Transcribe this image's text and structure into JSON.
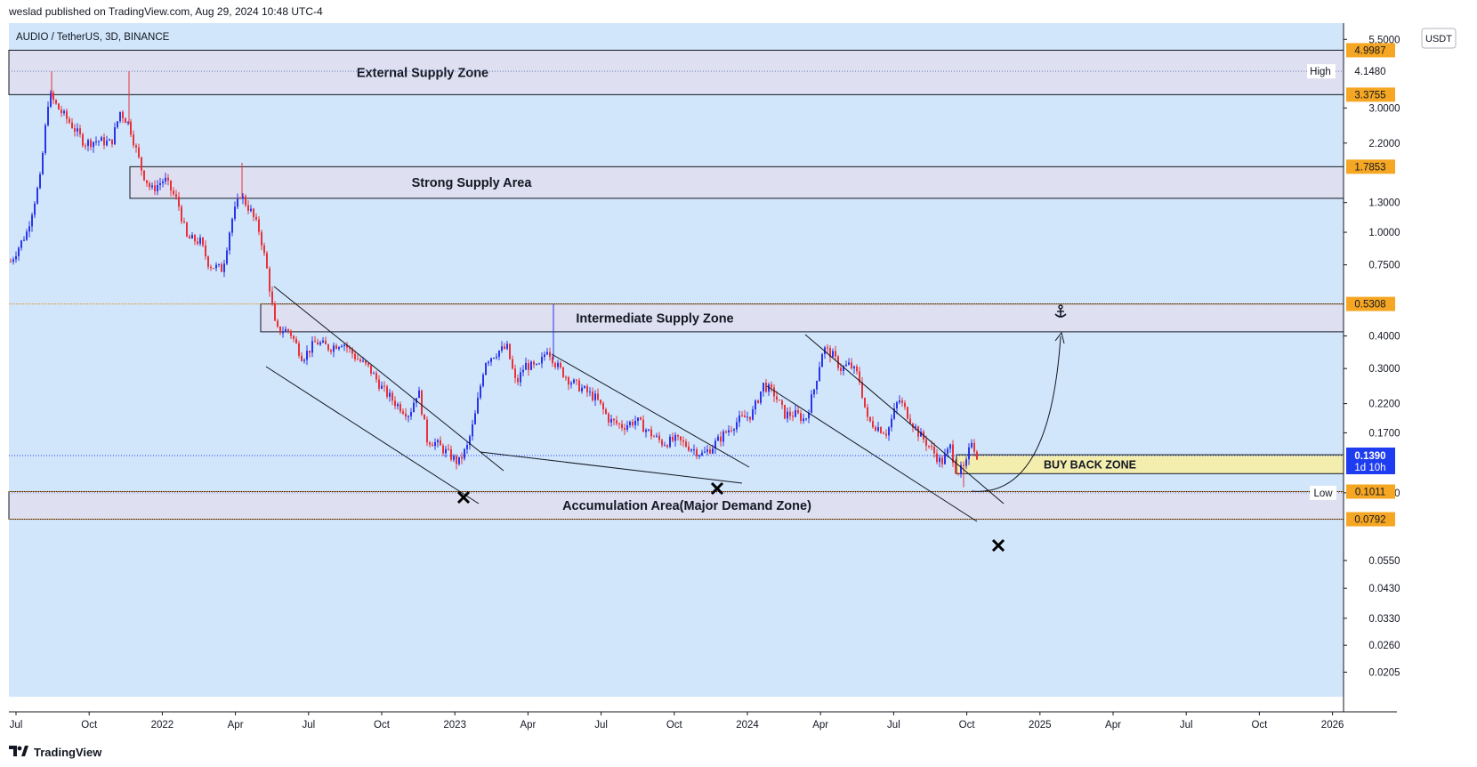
{
  "header": {
    "published_text": "weslad published on TradingView.com, Aug 29, 2024 10:48 UTC-4"
  },
  "footer": {
    "brand": "TradingView",
    "logo_icon": "tradingview-logo-icon"
  },
  "colors": {
    "background": "#d1e6fb",
    "bull": "#2a36e8",
    "bear": "#e8323a",
    "zone_fill": "#dedff0",
    "buy_zone_fill": "#f3eeae",
    "price_tag": "#f5a623",
    "current_tag": "#1e3cf0"
  },
  "chart_data": {
    "type": "candlestick",
    "symbol_label": "AUDIO / TetherUS, 3D, BINANCE",
    "currency": "USDT",
    "y_scale": "log",
    "ylim": [
      0.0165,
      6.35
    ],
    "x_tick_labels": [
      "Jul",
      "Oct",
      "2022",
      "Apr",
      "Jul",
      "Oct",
      "2023",
      "Apr",
      "Jul",
      "Oct",
      "2024",
      "Apr",
      "Jul",
      "Oct",
      "2025",
      "Apr",
      "Jul",
      "Oct",
      "2026"
    ],
    "y_tick_labels": [
      "5.5000",
      "3.0000",
      "2.2000",
      "1.3000",
      "1.0000",
      "0.7500",
      "0.4000",
      "0.3000",
      "0.2200",
      "0.1700",
      "0.1000",
      "0.0550",
      "0.0430",
      "0.0330",
      "0.0260",
      "0.0205"
    ],
    "price_tags": [
      {
        "value": "4.9987",
        "kind": "level"
      },
      {
        "value": "3.3755",
        "kind": "level"
      },
      {
        "value": "1.7853",
        "kind": "level"
      },
      {
        "value": "0.5308",
        "kind": "level"
      },
      {
        "value": "0.1011",
        "kind": "level"
      },
      {
        "value": "0.0792",
        "kind": "level"
      }
    ],
    "high_marker": {
      "label": "High",
      "value": "4.1480"
    },
    "low_marker": {
      "label": "Low",
      "value": "0.1000"
    },
    "last_price": {
      "value": "0.1390",
      "countdown": "1d 10h"
    },
    "zones": [
      {
        "label": "External Supply Zone",
        "top": 4.9987,
        "bottom": 3.3755
      },
      {
        "label": "Strong Supply Area",
        "top": 1.7853,
        "bottom": 1.35
      },
      {
        "label": "Intermediate Supply Zone",
        "top": 0.5308,
        "bottom": 0.415
      },
      {
        "label": "BUY BACK ZONE",
        "top": 0.14,
        "bottom": 0.1185
      },
      {
        "label": "Accumulation Area(Major Demand Zone)",
        "top": 0.1011,
        "bottom": 0.0792
      }
    ],
    "anchor_icon": "anchor-icon",
    "cross_icon": "cross-mark-icon"
  }
}
